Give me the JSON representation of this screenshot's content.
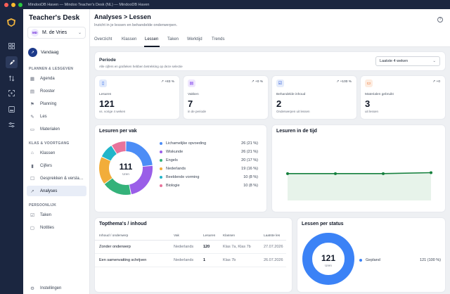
{
  "window": {
    "title": "MindooDB Haven — Mindoo Teacher's Desk (NL) — MindooDB Haven"
  },
  "sidebar": {
    "brand": "Teacher's Desk",
    "user": {
      "initials": "MD",
      "name": "M. de Vries"
    },
    "today": "Vandaag",
    "sections": [
      {
        "title": "PLANNEN & LESGEVEN",
        "items": [
          "Agenda",
          "Rooster",
          "Planning",
          "Les",
          "Materialen"
        ]
      },
      {
        "title": "KLAS & VOORTGANG",
        "items": [
          "Klassen",
          "Cijfers",
          "Gesprekken & versla…",
          "Analyses"
        ]
      },
      {
        "title": "PERSOONLIJK",
        "items": [
          "Taken",
          "Notities"
        ]
      }
    ],
    "active_item": "Analyses",
    "settings": "Instellingen"
  },
  "header": {
    "title": "Analyses > Lessen",
    "subtitle": "Inzicht in je lessen en behandelde onderwerpen."
  },
  "tabs": [
    "Overzicht",
    "Klassen",
    "Lessen",
    "Taken",
    "Werktijd",
    "Trends"
  ],
  "active_tab": "Lessen",
  "periode": {
    "title": "Periode",
    "subtitle": "Alle cijfers en grafieken hebben betrekking op deze selectie",
    "selected": "Laatste 4 weken"
  },
  "stats": [
    {
      "label": "Lesuren",
      "value": "121",
      "sub": "vs. vorige 4 weken",
      "trend": "+83 %",
      "icon": "book-icon",
      "color": "#2563eb",
      "bg": "#e0e9fb"
    },
    {
      "label": "Vakken",
      "value": "7",
      "sub": "in de periode",
      "trend": "+0 %",
      "icon": "document-icon",
      "color": "#7c3aed",
      "bg": "#efe7fd"
    },
    {
      "label": "Behandelde inhoud",
      "value": "2",
      "sub": "Onderwerpen uit lessen",
      "trend": "+100 %",
      "icon": "checkbox-icon",
      "color": "#1d4ed8",
      "bg": "#e5ecfb"
    },
    {
      "label": "Materialen gebruikt",
      "value": "3",
      "sub": "uit lessen",
      "trend": "+0",
      "icon": "folder-icon",
      "color": "#ea580c",
      "bg": "#fdece0"
    }
  ],
  "lesuren_per_vak": {
    "title": "Lesuren per vak",
    "total": "111",
    "total_label": "Uren",
    "items": [
      {
        "name": "Lichamelijke opvoeding",
        "value": "26 (21 %)",
        "hours": 26,
        "color": "#4c8df6"
      },
      {
        "name": "Wiskunde",
        "value": "26 (21 %)",
        "hours": 26,
        "color": "#9a5ee8"
      },
      {
        "name": "Engels",
        "value": "20 (17 %)",
        "hours": 20,
        "color": "#34b27a"
      },
      {
        "name": "Nederlands",
        "value": "19 (16 %)",
        "hours": 19,
        "color": "#f2ad3a"
      },
      {
        "name": "Beeldende vorming",
        "value": "10 (8 %)",
        "hours": 10,
        "color": "#22b5c9"
      },
      {
        "name": "Biologie",
        "value": "10 (8 %)",
        "hours": 10,
        "color": "#e8739b"
      }
    ],
    "chart_data": {
      "type": "pie",
      "categories": [
        "Lichamelijke opvoeding",
        "Wiskunde",
        "Engels",
        "Nederlands",
        "Beeldende vorming",
        "Biologie"
      ],
      "values": [
        26,
        26,
        20,
        19,
        10,
        10
      ],
      "title": "Lesuren per vak"
    }
  },
  "lesuren_in_de_tijd": {
    "title": "Lesuren in de tijd",
    "chart_data": {
      "type": "area",
      "x": [
        1,
        2,
        3,
        4
      ],
      "values": [
        29,
        29,
        29,
        30
      ],
      "ylim": [
        0,
        60
      ]
    }
  },
  "topthemas": {
    "title": "Topthema's / inhoud",
    "columns": [
      "Inhoud / onderwerp",
      "Vak",
      "Lesuren",
      "Klassen",
      "Laatste les"
    ],
    "rows": [
      {
        "topic": "Zonder onderwerp",
        "vak": "Nederlands",
        "uren": "120",
        "klassen": "Klas 7a, Klas 7b",
        "laatste": "27.07.2026"
      },
      {
        "topic": "Een samenvatting schrijven",
        "vak": "Nederlands",
        "uren": "1",
        "klassen": "Klas 7b",
        "laatste": "26.07.2026"
      }
    ]
  },
  "lessen_per_status": {
    "title": "Lessen per status",
    "total": "121",
    "total_label": "Uren",
    "legend": {
      "name": "Gepland",
      "value": "121 (100 %)",
      "color": "#3b82f6"
    },
    "chart_data": {
      "type": "pie",
      "categories": [
        "Gepland"
      ],
      "values": [
        121
      ]
    }
  }
}
